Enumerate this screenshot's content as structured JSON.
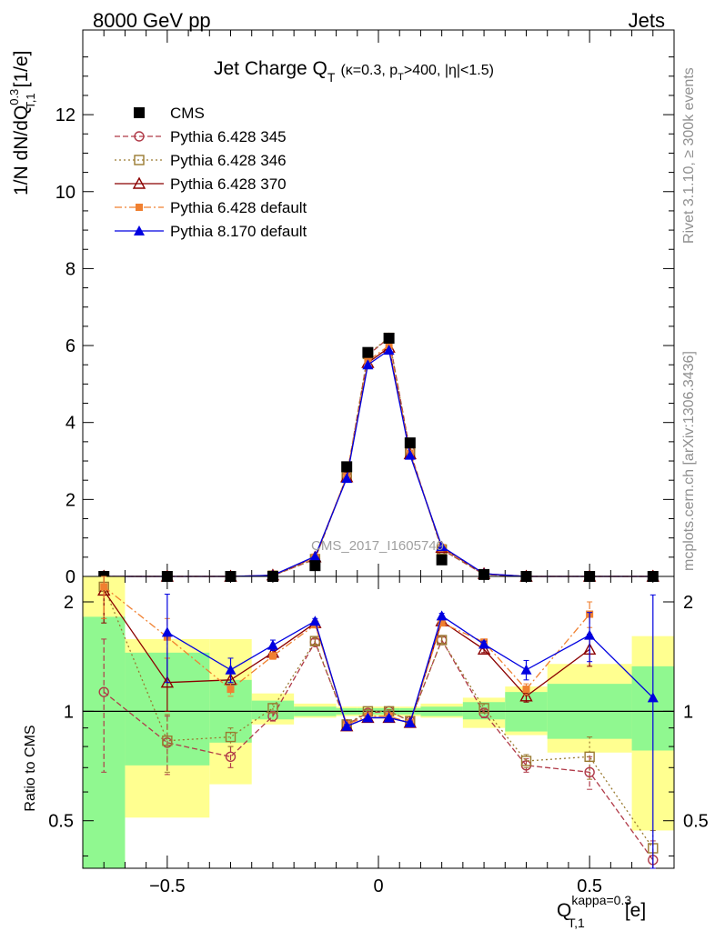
{
  "header": {
    "left": "8000 GeV pp",
    "right": "Jets"
  },
  "side_text": {
    "rivet": "Rivet 3.1.10, ≥ 300k events",
    "mcplots": "mcplots.cern.ch [arXiv:1306.3436]"
  },
  "watermark": "CMS_2017_I1605749",
  "colors": {
    "cms": "#000000",
    "p345": "#b03a48",
    "p346": "#9a7a30",
    "p370": "#8b0000",
    "pdefault": "#f08030",
    "p8": "#0000e0",
    "band_green": "#90f890",
    "band_yellow": "#ffff90"
  },
  "chart_data": [
    {
      "type": "line",
      "panel": "main",
      "title": "Jet Charge Q_T (κ=0.3, p_T>400, |η|<1.5)",
      "title_main": "Jet Charge Q",
      "title_sub": "T",
      "title_cuts": "(κ=0.3, p",
      "title_cuts_sub": "T",
      "title_cuts_end": ">400, |η|<1.5)",
      "ylabel": "1/N dN/dQ",
      "ylabel_sup": "0.3",
      "ylabel_sub": "T,1",
      "ylabel_unit": "[1/e]",
      "xlim": [
        -0.7,
        0.7
      ],
      "ylim": [
        0,
        14.2
      ],
      "yticks": [
        0,
        2,
        4,
        6,
        8,
        10,
        12
      ],
      "legend_position": "top-left",
      "x": [
        -0.65,
        -0.5,
        -0.35,
        -0.25,
        -0.15,
        -0.075,
        -0.025,
        0.025,
        0.075,
        0.15,
        0.25,
        0.35,
        0.5,
        0.65
      ],
      "series": [
        {
          "name": "CMS",
          "key": "cms",
          "marker": "square-filled",
          "line": "none",
          "values": [
            0.0,
            0.0,
            0.0,
            0.0,
            0.28,
            2.85,
            5.82,
            6.19,
            3.47,
            0.43,
            0.05,
            0.0,
            0.0,
            0.0
          ]
        },
        {
          "name": "Pythia 6.428 345",
          "key": "p345",
          "marker": "circle-open",
          "line": "dashed",
          "values": [
            0.0,
            0.0,
            0.0,
            0.02,
            0.45,
            2.6,
            5.75,
            6.2,
            3.25,
            0.7,
            0.05,
            0.0,
            0.0,
            0.0
          ]
        },
        {
          "name": "Pythia 6.428 346",
          "key": "p346",
          "marker": "square-open",
          "line": "dotted",
          "values": [
            0.0,
            0.0,
            0.0,
            0.02,
            0.45,
            2.6,
            5.78,
            6.2,
            3.22,
            0.7,
            0.05,
            0.0,
            0.0,
            0.0
          ]
        },
        {
          "name": "Pythia 6.428 370",
          "key": "p370",
          "marker": "triangle-open",
          "line": "solid",
          "values": [
            0.0,
            0.0,
            0.0,
            0.03,
            0.5,
            2.58,
            5.55,
            5.95,
            3.18,
            0.75,
            0.07,
            0.0,
            0.0,
            0.0
          ]
        },
        {
          "name": "Pythia 6.428 default",
          "key": "pdefault",
          "marker": "square-small-filled",
          "line": "dashdot",
          "values": [
            0.0,
            0.0,
            0.0,
            0.03,
            0.5,
            2.6,
            5.6,
            6.0,
            3.2,
            0.75,
            0.07,
            0.0,
            0.0,
            0.0
          ]
        },
        {
          "name": "Pythia 8.170 default",
          "key": "p8",
          "marker": "triangle-filled",
          "line": "solid",
          "values": [
            0.0,
            0.0,
            0.0,
            0.03,
            0.52,
            2.55,
            5.5,
            5.88,
            3.15,
            0.78,
            0.07,
            0.0,
            0.0,
            0.0
          ]
        }
      ]
    },
    {
      "type": "line",
      "panel": "ratio",
      "ylabel": "Ratio to CMS",
      "xlabel": "Q",
      "xlabel_sup": "kappa=0.3",
      "xlabel_sub": "T,1",
      "xlabel_unit": "[e]",
      "xlim": [
        -0.7,
        0.7
      ],
      "ylim": [
        0.37,
        2.35
      ],
      "yticks": [
        0.5,
        1,
        2
      ],
      "xticks": [
        -0.5,
        0,
        0.5
      ],
      "xtick_labels": [
        "−0.5",
        "0",
        "0.5"
      ],
      "bands": {
        "edges": [
          -0.7,
          -0.6,
          -0.4,
          -0.3,
          -0.2,
          -0.1,
          -0.05,
          0.0,
          0.05,
          0.1,
          0.2,
          0.3,
          0.4,
          0.6,
          0.7
        ],
        "green_lo": [
          0.37,
          0.71,
          0.82,
          0.95,
          0.97,
          0.98,
          0.98,
          0.98,
          0.98,
          0.97,
          0.95,
          0.88,
          0.84,
          0.78
        ],
        "green_hi": [
          1.82,
          1.45,
          1.22,
          1.07,
          1.03,
          1.02,
          1.02,
          1.02,
          1.02,
          1.03,
          1.06,
          1.13,
          1.19,
          1.33
        ],
        "yellow_lo": [
          0.37,
          0.51,
          0.63,
          0.92,
          0.96,
          0.97,
          0.97,
          0.97,
          0.97,
          0.96,
          0.9,
          0.86,
          0.77,
          0.47
        ],
        "yellow_hi": [
          2.35,
          1.58,
          1.58,
          1.12,
          1.05,
          1.03,
          1.03,
          1.03,
          1.03,
          1.05,
          1.09,
          1.17,
          1.35,
          1.61
        ]
      },
      "x": [
        -0.65,
        -0.5,
        -0.35,
        -0.25,
        -0.15,
        -0.075,
        -0.025,
        0.025,
        0.075,
        0.15,
        0.25,
        0.35,
        0.5,
        0.65
      ],
      "series": [
        {
          "name": "Pythia 6.428 345",
          "key": "p345",
          "marker": "circle-open",
          "line": "dashed",
          "values": [
            1.13,
            0.82,
            0.75,
            0.97,
            1.55,
            0.92,
            0.99,
            1.0,
            0.94,
            1.57,
            0.99,
            0.71,
            0.68,
            0.39
          ],
          "err": [
            0.45,
            0.15,
            0.05,
            0.03,
            0.03,
            0.01,
            0.01,
            0.01,
            0.01,
            0.03,
            0.03,
            0.03,
            0.07,
            0.05
          ]
        },
        {
          "name": "Pythia 6.428 346",
          "key": "p346",
          "marker": "square-open",
          "line": "dotted",
          "values": [
            2.2,
            0.83,
            0.85,
            1.02,
            1.56,
            0.92,
            1.0,
            1.0,
            0.94,
            1.57,
            1.02,
            0.73,
            0.75,
            0.42
          ],
          "err": [
            0.4,
            0.15,
            0.05,
            0.03,
            0.03,
            0.01,
            0.01,
            0.01,
            0.01,
            0.03,
            0.03,
            0.03,
            0.1,
            0.05
          ]
        },
        {
          "name": "Pythia 6.428 370",
          "key": "p370",
          "marker": "triangle-open",
          "line": "solid",
          "values": [
            2.15,
            1.2,
            1.22,
            1.45,
            1.75,
            0.91,
            0.96,
            0.96,
            0.93,
            1.77,
            1.48,
            1.1,
            1.48,
            null
          ],
          "err": [
            0.4,
            0.2,
            0.05,
            0.03,
            0.03,
            0.01,
            0.01,
            0.01,
            0.01,
            0.03,
            0.03,
            0.04,
            0.15,
            null
          ]
        },
        {
          "name": "Pythia 6.428 default",
          "key": "pdefault",
          "marker": "square-small-filled",
          "line": "dashdot",
          "values": [
            2.2,
            1.6,
            1.15,
            1.42,
            1.73,
            0.92,
            0.97,
            0.97,
            0.93,
            1.75,
            1.55,
            1.15,
            1.85,
            null
          ],
          "err": [
            0.4,
            0.2,
            0.05,
            0.03,
            0.03,
            0.01,
            0.01,
            0.01,
            0.01,
            0.03,
            0.03,
            0.04,
            0.15,
            null
          ]
        },
        {
          "name": "Pythia 8.170 default",
          "key": "p8",
          "marker": "triangle-filled",
          "line": "solid",
          "values": [
            null,
            1.65,
            1.3,
            1.52,
            1.77,
            0.91,
            0.96,
            0.96,
            0.93,
            1.83,
            1.53,
            1.3,
            1.62,
            1.09
          ],
          "err": [
            null,
            0.45,
            0.1,
            0.05,
            0.03,
            0.01,
            0.01,
            0.01,
            0.01,
            0.03,
            0.03,
            0.08,
            0.25,
            1.0
          ]
        }
      ]
    }
  ]
}
